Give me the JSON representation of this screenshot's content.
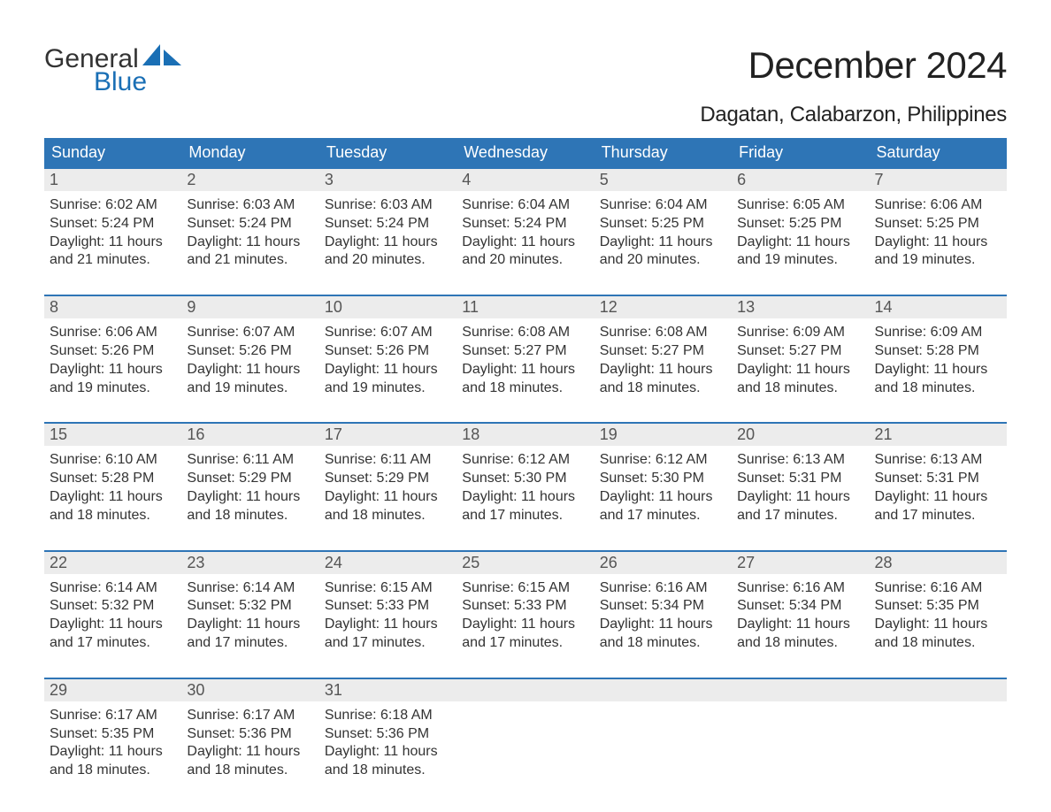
{
  "brand": {
    "word1": "General",
    "word2": "Blue",
    "text_color": "#333333",
    "accent_color": "#1a6fb5",
    "sail_fill": "#1a6fb5"
  },
  "title": {
    "month": "December 2024",
    "location": "Dagatan, Calabarzon, Philippines",
    "month_fontsize": 42,
    "location_fontsize": 24,
    "text_color": "#222222"
  },
  "calendar": {
    "type": "table",
    "header_bg": "#2e75b6",
    "header_text_color": "#ffffff",
    "week_rule_color": "#2e75b6",
    "daynum_bg": "#ececec",
    "daynum_color": "#555555",
    "body_text_color": "#333333",
    "body_fontsize": 16,
    "columns": [
      "Sunday",
      "Monday",
      "Tuesday",
      "Wednesday",
      "Thursday",
      "Friday",
      "Saturday"
    ],
    "weeks": [
      [
        {
          "num": "1",
          "sunrise": "Sunrise: 6:02 AM",
          "sunset": "Sunset: 5:24 PM",
          "daylight": "Daylight: 11 hours and 21 minutes."
        },
        {
          "num": "2",
          "sunrise": "Sunrise: 6:03 AM",
          "sunset": "Sunset: 5:24 PM",
          "daylight": "Daylight: 11 hours and 21 minutes."
        },
        {
          "num": "3",
          "sunrise": "Sunrise: 6:03 AM",
          "sunset": "Sunset: 5:24 PM",
          "daylight": "Daylight: 11 hours and 20 minutes."
        },
        {
          "num": "4",
          "sunrise": "Sunrise: 6:04 AM",
          "sunset": "Sunset: 5:24 PM",
          "daylight": "Daylight: 11 hours and 20 minutes."
        },
        {
          "num": "5",
          "sunrise": "Sunrise: 6:04 AM",
          "sunset": "Sunset: 5:25 PM",
          "daylight": "Daylight: 11 hours and 20 minutes."
        },
        {
          "num": "6",
          "sunrise": "Sunrise: 6:05 AM",
          "sunset": "Sunset: 5:25 PM",
          "daylight": "Daylight: 11 hours and 19 minutes."
        },
        {
          "num": "7",
          "sunrise": "Sunrise: 6:06 AM",
          "sunset": "Sunset: 5:25 PM",
          "daylight": "Daylight: 11 hours and 19 minutes."
        }
      ],
      [
        {
          "num": "8",
          "sunrise": "Sunrise: 6:06 AM",
          "sunset": "Sunset: 5:26 PM",
          "daylight": "Daylight: 11 hours and 19 minutes."
        },
        {
          "num": "9",
          "sunrise": "Sunrise: 6:07 AM",
          "sunset": "Sunset: 5:26 PM",
          "daylight": "Daylight: 11 hours and 19 minutes."
        },
        {
          "num": "10",
          "sunrise": "Sunrise: 6:07 AM",
          "sunset": "Sunset: 5:26 PM",
          "daylight": "Daylight: 11 hours and 19 minutes."
        },
        {
          "num": "11",
          "sunrise": "Sunrise: 6:08 AM",
          "sunset": "Sunset: 5:27 PM",
          "daylight": "Daylight: 11 hours and 18 minutes."
        },
        {
          "num": "12",
          "sunrise": "Sunrise: 6:08 AM",
          "sunset": "Sunset: 5:27 PM",
          "daylight": "Daylight: 11 hours and 18 minutes."
        },
        {
          "num": "13",
          "sunrise": "Sunrise: 6:09 AM",
          "sunset": "Sunset: 5:27 PM",
          "daylight": "Daylight: 11 hours and 18 minutes."
        },
        {
          "num": "14",
          "sunrise": "Sunrise: 6:09 AM",
          "sunset": "Sunset: 5:28 PM",
          "daylight": "Daylight: 11 hours and 18 minutes."
        }
      ],
      [
        {
          "num": "15",
          "sunrise": "Sunrise: 6:10 AM",
          "sunset": "Sunset: 5:28 PM",
          "daylight": "Daylight: 11 hours and 18 minutes."
        },
        {
          "num": "16",
          "sunrise": "Sunrise: 6:11 AM",
          "sunset": "Sunset: 5:29 PM",
          "daylight": "Daylight: 11 hours and 18 minutes."
        },
        {
          "num": "17",
          "sunrise": "Sunrise: 6:11 AM",
          "sunset": "Sunset: 5:29 PM",
          "daylight": "Daylight: 11 hours and 18 minutes."
        },
        {
          "num": "18",
          "sunrise": "Sunrise: 6:12 AM",
          "sunset": "Sunset: 5:30 PM",
          "daylight": "Daylight: 11 hours and 17 minutes."
        },
        {
          "num": "19",
          "sunrise": "Sunrise: 6:12 AM",
          "sunset": "Sunset: 5:30 PM",
          "daylight": "Daylight: 11 hours and 17 minutes."
        },
        {
          "num": "20",
          "sunrise": "Sunrise: 6:13 AM",
          "sunset": "Sunset: 5:31 PM",
          "daylight": "Daylight: 11 hours and 17 minutes."
        },
        {
          "num": "21",
          "sunrise": "Sunrise: 6:13 AM",
          "sunset": "Sunset: 5:31 PM",
          "daylight": "Daylight: 11 hours and 17 minutes."
        }
      ],
      [
        {
          "num": "22",
          "sunrise": "Sunrise: 6:14 AM",
          "sunset": "Sunset: 5:32 PM",
          "daylight": "Daylight: 11 hours and 17 minutes."
        },
        {
          "num": "23",
          "sunrise": "Sunrise: 6:14 AM",
          "sunset": "Sunset: 5:32 PM",
          "daylight": "Daylight: 11 hours and 17 minutes."
        },
        {
          "num": "24",
          "sunrise": "Sunrise: 6:15 AM",
          "sunset": "Sunset: 5:33 PM",
          "daylight": "Daylight: 11 hours and 17 minutes."
        },
        {
          "num": "25",
          "sunrise": "Sunrise: 6:15 AM",
          "sunset": "Sunset: 5:33 PM",
          "daylight": "Daylight: 11 hours and 17 minutes."
        },
        {
          "num": "26",
          "sunrise": "Sunrise: 6:16 AM",
          "sunset": "Sunset: 5:34 PM",
          "daylight": "Daylight: 11 hours and 18 minutes."
        },
        {
          "num": "27",
          "sunrise": "Sunrise: 6:16 AM",
          "sunset": "Sunset: 5:34 PM",
          "daylight": "Daylight: 11 hours and 18 minutes."
        },
        {
          "num": "28",
          "sunrise": "Sunrise: 6:16 AM",
          "sunset": "Sunset: 5:35 PM",
          "daylight": "Daylight: 11 hours and 18 minutes."
        }
      ],
      [
        {
          "num": "29",
          "sunrise": "Sunrise: 6:17 AM",
          "sunset": "Sunset: 5:35 PM",
          "daylight": "Daylight: 11 hours and 18 minutes."
        },
        {
          "num": "30",
          "sunrise": "Sunrise: 6:17 AM",
          "sunset": "Sunset: 5:36 PM",
          "daylight": "Daylight: 11 hours and 18 minutes."
        },
        {
          "num": "31",
          "sunrise": "Sunrise: 6:18 AM",
          "sunset": "Sunset: 5:36 PM",
          "daylight": "Daylight: 11 hours and 18 minutes."
        },
        null,
        null,
        null,
        null
      ]
    ]
  }
}
